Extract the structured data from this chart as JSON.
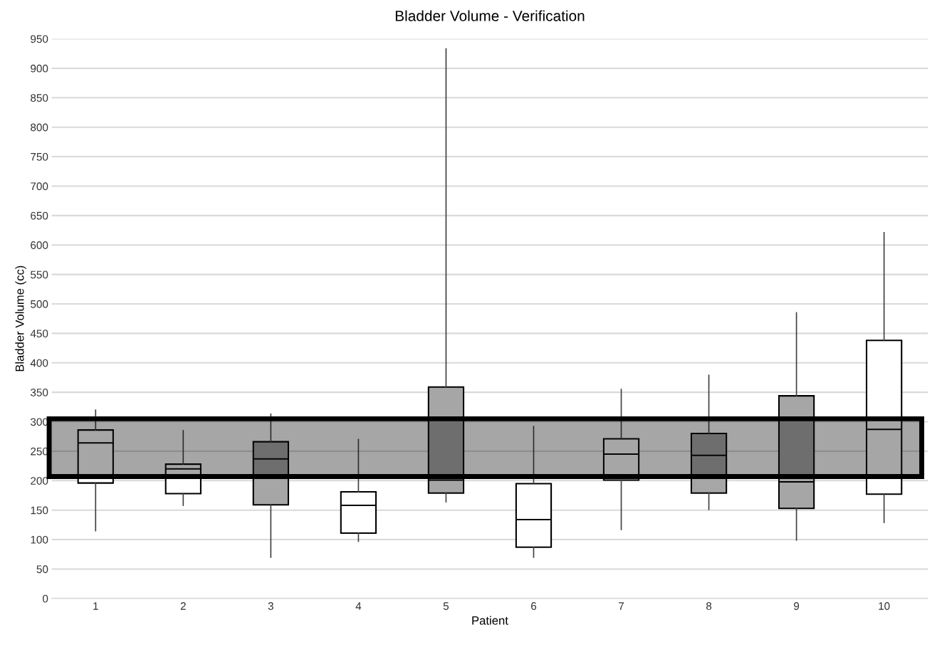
{
  "chart_data": {
    "type": "box",
    "title": "Bladder Volume - Verification",
    "xlabel": "Patient",
    "ylabel": "Bladder Volume (cc)",
    "categories": [
      "1",
      "2",
      "3",
      "4",
      "5",
      "6",
      "7",
      "8",
      "9",
      "10"
    ],
    "series": [
      {
        "color": "#ffffff",
        "boxes": [
          {
            "low": 115,
            "q1": 196,
            "median": 264,
            "q3": 286,
            "high": 320
          },
          {
            "low": 158,
            "q1": 178,
            "median": 220,
            "q3": 228,
            "high": 285
          },
          null,
          {
            "low": 97,
            "q1": 111,
            "median": 158,
            "q3": 181,
            "high": 270
          },
          null,
          {
            "low": 70,
            "q1": 87,
            "median": 134,
            "q3": 195,
            "high": 292
          },
          {
            "low": 117,
            "q1": 201,
            "median": 245,
            "q3": 271,
            "high": 355
          },
          null,
          null,
          {
            "low": 129,
            "q1": 177,
            "median": 287,
            "q3": 438,
            "high": 621
          }
        ]
      },
      {
        "color": "#a6a6a6",
        "boxes": [
          null,
          null,
          {
            "low": 70,
            "q1": 159,
            "median": 237,
            "q3": 266,
            "high": 313
          },
          null,
          {
            "low": 164,
            "q1": 179,
            "median": 201,
            "q3": 359,
            "high": 933
          },
          null,
          null,
          {
            "low": 151,
            "q1": 179,
            "median": 243,
            "q3": 280,
            "high": 379
          },
          {
            "low": 99,
            "q1": 153,
            "median": 198,
            "q3": 344,
            "high": 485
          },
          null
        ]
      }
    ],
    "ylim": [
      0,
      950
    ],
    "yticks": [
      0,
      50,
      100,
      150,
      200,
      250,
      300,
      350,
      400,
      450,
      500,
      550,
      600,
      650,
      700,
      750,
      800,
      850,
      900,
      950
    ],
    "grid": "y",
    "bands": [
      {
        "axis": "y",
        "from": 207,
        "to": 305,
        "color": "#0e0e0e"
      }
    ]
  }
}
